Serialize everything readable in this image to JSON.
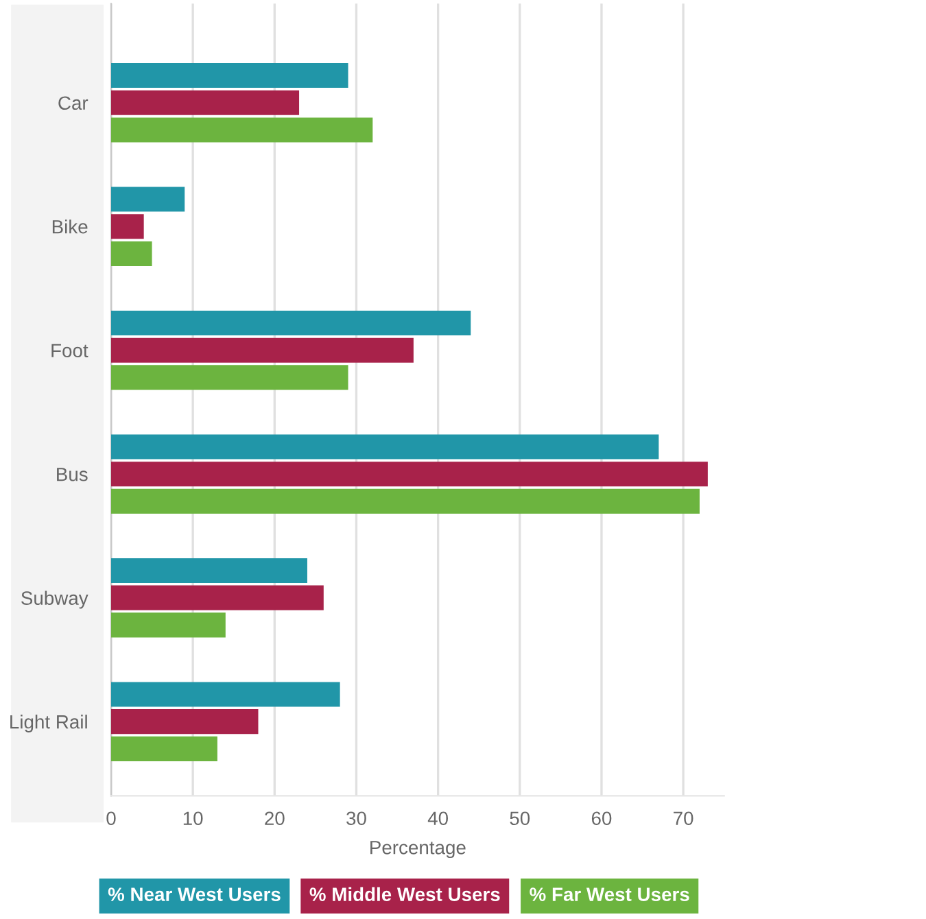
{
  "chart_data": {
    "type": "bar",
    "orientation": "horizontal",
    "xlabel": "Percentage",
    "categories": [
      "Car",
      "Bike",
      "Foot",
      "Bus",
      "Subway",
      "Light Rail"
    ],
    "series": [
      {
        "name": "% Near West Users",
        "color": "#2196a8",
        "values": [
          29,
          9,
          44,
          67,
          24,
          28
        ]
      },
      {
        "name": "% Middle West Users",
        "color": "#a8224a",
        "values": [
          23,
          4,
          37,
          73,
          26,
          18
        ]
      },
      {
        "name": "% Far West Users",
        "color": "#6cb43f",
        "values": [
          32,
          5,
          29,
          72,
          14,
          13
        ]
      }
    ],
    "xlim": [
      0,
      75
    ],
    "xticks": [
      0,
      10,
      20,
      30,
      40,
      50,
      60,
      70
    ],
    "grid": "x",
    "legend": "bottom"
  }
}
